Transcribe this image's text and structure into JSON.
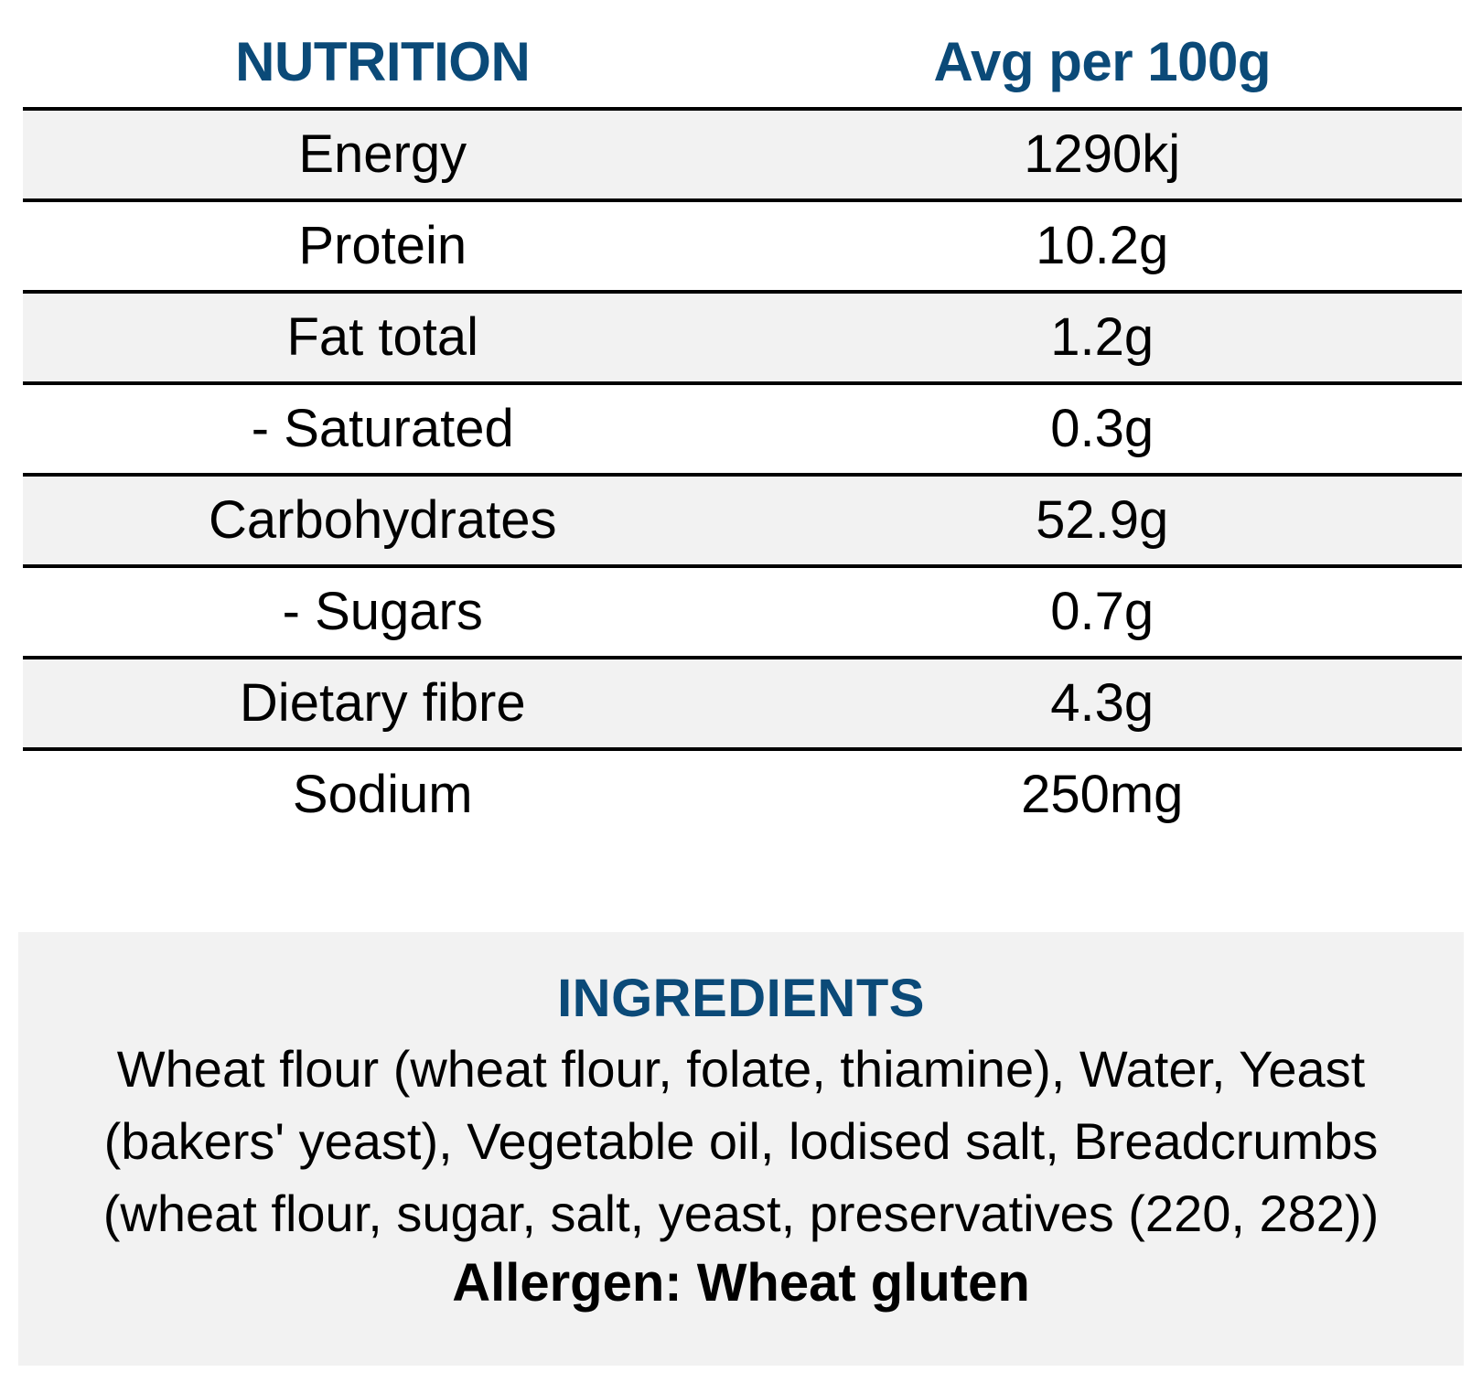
{
  "nutrition": {
    "header": {
      "label_col": "NUTRITION",
      "value_col": "Avg per 100g"
    },
    "rows": [
      {
        "label": "Energy",
        "value": "1290kj"
      },
      {
        "label": "Protein",
        "value": "10.2g"
      },
      {
        "label": "Fat total",
        "value": "1.2g"
      },
      {
        "label": "- Saturated",
        "value": "0.3g"
      },
      {
        "label": "Carbohydrates",
        "value": "52.9g"
      },
      {
        "label": "- Sugars",
        "value": "0.7g"
      },
      {
        "label": "Dietary fibre",
        "value": "4.3g"
      },
      {
        "label": "Sodium",
        "value": "250mg"
      }
    ]
  },
  "ingredients": {
    "title": "INGREDIENTS",
    "text": "Wheat flour (wheat flour, folate, thiamine), Water, Yeast (bakers' yeast), Vegetable oil, lodised salt, Breadcrumbs (wheat flour, sugar, salt, yeast, preservatives (220, 282))",
    "allergen": "Allergen: Wheat gluten"
  },
  "colors": {
    "heading": "#0b4a78",
    "shade": "#f2f2f2",
    "rule": "#000000"
  }
}
